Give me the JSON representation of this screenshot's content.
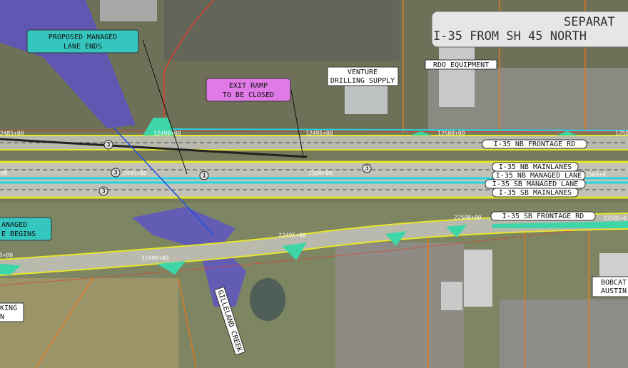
{
  "title": {
    "lines": [
      "SEPARAT",
      "I-35 FROM SH 45 NORTH"
    ]
  },
  "callouts": [
    {
      "lines": [
        "PROPOSED MANAGED",
        "LANE ENDS"
      ]
    },
    {
      "lines": [
        "EXIT RAMP",
        "TO BE CLOSED"
      ]
    },
    {
      "lines": [
        "ANAGED",
        "E BEGINS"
      ]
    }
  ],
  "businesses": [
    {
      "lines": [
        "VENTURE",
        "DRILLING SUPPLY"
      ]
    },
    {
      "lines": [
        "RDO EQUIPMENT"
      ]
    },
    {
      "lines": [
        "BOBCAT",
        "AUSTIN"
      ]
    },
    {
      "lines": [
        "KING",
        "N"
      ]
    }
  ],
  "creek": "GILLELAND CREEK",
  "road_labels": [
    "I-35 NB FRONTAGE RD",
    "I-35 NB MAINLANES",
    "I-35 NB MANAGED LANE",
    "I-35 SB MANAGED LANE",
    "I-35 SB MAINLANES",
    "I-35 SB FRONTAGE RD"
  ],
  "stations": [
    "12485+00",
    "12490+00",
    "12495+00",
    "12500+00",
    "1250",
    "2495+00",
    "2500+00",
    "2505+0",
    "+00",
    "85+00",
    "22490+00",
    "22495+00",
    "22500+00",
    "22505+0"
  ],
  "markers": [
    "3",
    "3",
    "1",
    "3",
    "3"
  ]
}
